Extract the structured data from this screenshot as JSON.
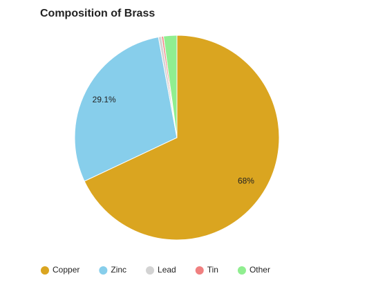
{
  "chart_data": {
    "type": "pie",
    "title": "Composition of Brass",
    "categories": [
      "Copper",
      "Zinc",
      "Lead",
      "Tin",
      "Other"
    ],
    "values": [
      68,
      29.1,
      0.5,
      0.3,
      2.1
    ],
    "value_labels": [
      "68%",
      "29.1%",
      null,
      null,
      null
    ],
    "colors": [
      "#daa520",
      "#87ceeb",
      "#d3d3d3",
      "#f08080",
      "#90ee90"
    ],
    "legend": "bottom"
  }
}
